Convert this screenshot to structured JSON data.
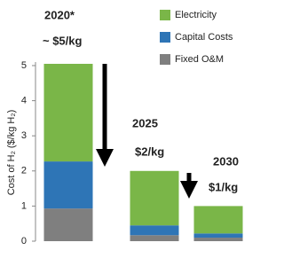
{
  "chart_data": {
    "type": "stacked_bar",
    "y_label": "Cost of H₂ ($/kg H₂)",
    "categories": [
      null,
      null,
      null
    ],
    "series": [
      {
        "name": "Fixed O&M",
        "color": "#7f7f7f",
        "values": [
          0.93,
          0.17,
          0.1
        ]
      },
      {
        "name": "Capital Costs",
        "color": "#2e75b6",
        "values": [
          1.34,
          0.28,
          0.12
        ]
      },
      {
        "name": "Electricity",
        "color": "#7ab648",
        "values": [
          2.78,
          1.55,
          0.78
        ]
      }
    ],
    "ylim": [
      0,
      5.1
    ],
    "yticks": [
      0,
      1,
      2,
      3,
      4,
      5
    ],
    "annotations": [
      "2020*",
      "~ $5/kg",
      "2025",
      "$2/kg",
      "2030",
      "$1/kg"
    ],
    "legend": "upper right"
  }
}
